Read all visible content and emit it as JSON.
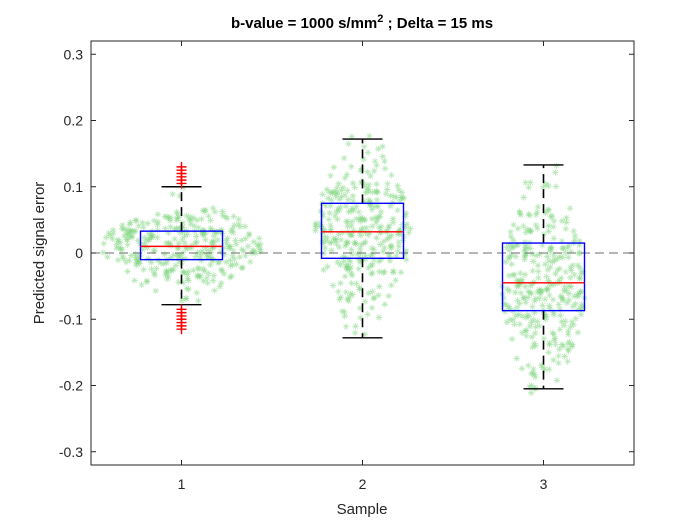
{
  "chart_data": {
    "type": "box",
    "title": "b-value = 1000 s/mm",
    "title_superscript": "2",
    "title_suffix": " ; Delta = 15 ms",
    "xlabel": "Sample",
    "ylabel": "Predicted signal error",
    "categories": [
      "1",
      "2",
      "3"
    ],
    "xlim": [
      0.5,
      3.5
    ],
    "ylim": [
      -0.32,
      0.32
    ],
    "yticks": [
      -0.3,
      -0.2,
      -0.1,
      0,
      0.1,
      0.2,
      0.3
    ],
    "ytick_labels": [
      "-0.3",
      "-0.2",
      "-0.1",
      "0",
      "0.1",
      "0.2",
      "0.3"
    ],
    "reference_line": 0,
    "boxes": [
      {
        "name": "1",
        "q1": -0.01,
        "median": 0.01,
        "q3": 0.033,
        "whisker_low": -0.078,
        "whisker_high": 0.1,
        "outliers": [
          -0.115,
          -0.11,
          -0.105,
          -0.1,
          -0.095,
          -0.09,
          -0.085,
          0.105,
          0.11,
          0.115,
          0.12,
          0.125,
          0.13
        ]
      },
      {
        "name": "2",
        "q1": -0.008,
        "median": 0.032,
        "q3": 0.075,
        "whisker_low": -0.128,
        "whisker_high": 0.172,
        "outliers": []
      },
      {
        "name": "3",
        "q1": -0.087,
        "median": -0.045,
        "q3": 0.015,
        "whisker_low": -0.205,
        "whisker_high": 0.133,
        "outliers": []
      }
    ],
    "colors": {
      "box": "#0000ff",
      "median": "#ff0000",
      "whisker": "#000000",
      "outlier": "#ff0000",
      "points": "#7fd67f",
      "reference": "#6e6e6e",
      "axes": "#262626"
    },
    "grid": false,
    "legend": "none"
  }
}
